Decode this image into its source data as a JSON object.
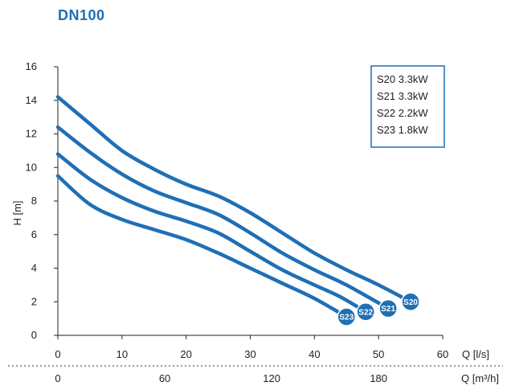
{
  "page": {
    "title": "DN100"
  },
  "chart_data": {
    "type": "line",
    "title": "DN100",
    "xlabel": "Q [l/s]",
    "ylabel": "H [m]",
    "secondary_xlabel": "Q [m³/h]",
    "xlim": [
      0,
      60
    ],
    "ylim": [
      0,
      16
    ],
    "x_ticks": [
      0,
      10,
      20,
      30,
      40,
      50,
      60
    ],
    "y_ticks": [
      0,
      2,
      4,
      6,
      8,
      10,
      12,
      14,
      16
    ],
    "secondary_x_ticks": [
      {
        "value": 0,
        "label": "0"
      },
      {
        "value": 60,
        "label": "60"
      },
      {
        "value": 120,
        "label": "120"
      },
      {
        "value": 180,
        "label": "180"
      }
    ],
    "grid": false,
    "legend": {
      "position": "top-right",
      "entries": [
        "S20 3.3kW",
        "S21 3.3kW",
        "S22 2.2kW",
        "S23 1.8kW"
      ]
    },
    "line_color": "#1f6fb5",
    "series": [
      {
        "name": "S20",
        "badge": "S20",
        "x": [
          0,
          5,
          10,
          15,
          20,
          25,
          30,
          35,
          40,
          45,
          50,
          55
        ],
        "y": [
          14.2,
          12.6,
          11.0,
          9.9,
          9.0,
          8.3,
          7.3,
          6.1,
          4.9,
          3.9,
          3.0,
          2.0
        ]
      },
      {
        "name": "S21",
        "badge": "S21",
        "x": [
          0,
          5,
          10,
          15,
          20,
          25,
          30,
          35,
          40,
          45,
          51.5
        ],
        "y": [
          12.4,
          10.9,
          9.6,
          8.6,
          7.9,
          7.2,
          6.1,
          4.9,
          3.9,
          3.0,
          1.6
        ]
      },
      {
        "name": "S22",
        "badge": "S22",
        "x": [
          0,
          5,
          10,
          15,
          20,
          25,
          30,
          35,
          40,
          44,
          48
        ],
        "y": [
          10.8,
          9.3,
          8.2,
          7.4,
          6.8,
          6.1,
          5.0,
          3.9,
          3.0,
          2.3,
          1.4
        ]
      },
      {
        "name": "S23",
        "badge": "S23",
        "x": [
          0,
          5,
          10,
          15,
          20,
          25,
          30,
          35,
          40,
          45
        ],
        "y": [
          9.5,
          7.8,
          6.9,
          6.3,
          5.7,
          4.9,
          4.0,
          3.1,
          2.2,
          1.1
        ]
      }
    ]
  }
}
